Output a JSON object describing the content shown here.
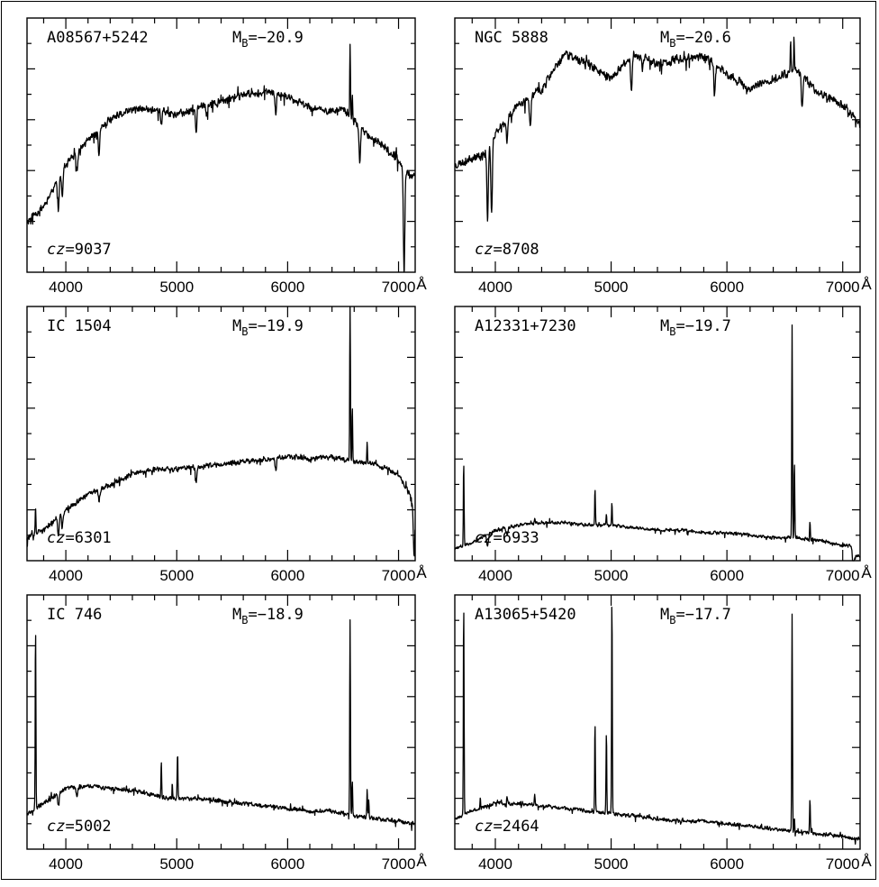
{
  "chart_data": {
    "type": "line",
    "x_unit": "Å",
    "xlim": [
      3650,
      7150
    ],
    "x_ticks": [
      4000,
      5000,
      6000,
      7000
    ],
    "x_minor_step": 200,
    "grid": false,
    "legend": "none",
    "line_color": "#000000",
    "panels": [
      {
        "galaxy": "A08567+5242",
        "mb_prefix": "M",
        "mb_sub": "B",
        "mb_value": "=−20.9",
        "cz_prefix": "cz",
        "cz_value": "=9037",
        "continuum": {
          "x": [
            3650,
            3800,
            4000,
            4200,
            4400,
            4600,
            4800,
            5000,
            5200,
            5400,
            5600,
            5800,
            6000,
            6200,
            6400,
            6500,
            6700,
            6900,
            7000,
            7050,
            7100
          ],
          "y": [
            0.2,
            0.26,
            0.42,
            0.52,
            0.6,
            0.64,
            0.64,
            0.62,
            0.65,
            0.67,
            0.7,
            0.71,
            0.69,
            0.65,
            0.63,
            0.64,
            0.55,
            0.48,
            0.44,
            0.4,
            0.38
          ]
        },
        "features": [
          {
            "x": 3933,
            "y": -0.12
          },
          {
            "x": 3968,
            "y": -0.1
          },
          {
            "x": 4101,
            "y": -0.08
          },
          {
            "x": 4300,
            "y": -0.1
          },
          {
            "x": 4861,
            "y": -0.05
          },
          {
            "x": 5175,
            "y": -0.1
          },
          {
            "x": 5270,
            "y": -0.04
          },
          {
            "x": 5893,
            "y": -0.08
          },
          {
            "x": 6563,
            "y": 0.28
          },
          {
            "x": 6583,
            "y": 0.1
          },
          {
            "x": 6650,
            "y": -0.15
          },
          {
            "x": 7050,
            "y": -0.4
          }
        ],
        "noise": 0.018,
        "seed": 11
      },
      {
        "galaxy": "NGC 5888",
        "mb_prefix": "M",
        "mb_sub": "B",
        "mb_value": "=−20.6",
        "cz_prefix": "cz",
        "cz_value": "=8708",
        "continuum": {
          "x": [
            3650,
            3800,
            3900,
            4000,
            4200,
            4400,
            4600,
            4800,
            5000,
            5200,
            5400,
            5600,
            5800,
            6000,
            6200,
            6400,
            6600,
            6800,
            7000,
            7150
          ],
          "y": [
            0.42,
            0.45,
            0.46,
            0.55,
            0.66,
            0.72,
            0.86,
            0.82,
            0.76,
            0.86,
            0.82,
            0.84,
            0.85,
            0.78,
            0.72,
            0.76,
            0.8,
            0.7,
            0.66,
            0.58
          ]
        },
        "features": [
          {
            "x": 3933,
            "y": -0.3
          },
          {
            "x": 3968,
            "y": -0.28
          },
          {
            "x": 4101,
            "y": -0.1
          },
          {
            "x": 4300,
            "y": -0.12
          },
          {
            "x": 5175,
            "y": -0.14
          },
          {
            "x": 5270,
            "y": -0.05
          },
          {
            "x": 5893,
            "y": -0.12
          },
          {
            "x": 6550,
            "y": 0.12
          },
          {
            "x": 6580,
            "y": 0.1
          },
          {
            "x": 6650,
            "y": -0.14
          }
        ],
        "noise": 0.02,
        "seed": 23
      },
      {
        "galaxy": "IC 1504",
        "mb_prefix": "M",
        "mb_sub": "B",
        "mb_value": "=−19.9",
        "cz_prefix": "cz",
        "cz_value": "=6301",
        "continuum": {
          "x": [
            3650,
            3800,
            4000,
            4200,
            4400,
            4600,
            4800,
            5000,
            5200,
            5400,
            5600,
            5800,
            6000,
            6200,
            6400,
            6600,
            6800,
            7000,
            7100,
            7150
          ],
          "y": [
            0.09,
            0.12,
            0.2,
            0.26,
            0.3,
            0.34,
            0.36,
            0.36,
            0.37,
            0.38,
            0.39,
            0.4,
            0.41,
            0.4,
            0.41,
            0.39,
            0.38,
            0.34,
            0.26,
            0.2
          ]
        },
        "features": [
          {
            "x": 3727,
            "y": 0.1
          },
          {
            "x": 3933,
            "y": -0.08
          },
          {
            "x": 3968,
            "y": -0.06
          },
          {
            "x": 4300,
            "y": -0.05
          },
          {
            "x": 5175,
            "y": -0.06
          },
          {
            "x": 5893,
            "y": -0.05
          },
          {
            "x": 6563,
            "y": 0.62
          },
          {
            "x": 6583,
            "y": 0.22
          },
          {
            "x": 6717,
            "y": 0.08
          },
          {
            "x": 7140,
            "y": -0.2
          }
        ],
        "noise": 0.012,
        "seed": 37
      },
      {
        "galaxy": "A12331+7230",
        "mb_prefix": "M",
        "mb_sub": "B",
        "mb_value": "=−19.7",
        "cz_prefix": "cz",
        "cz_value": "=6933",
        "continuum": {
          "x": [
            3650,
            3800,
            4000,
            4200,
            4400,
            4600,
            4800,
            5000,
            5200,
            5400,
            5600,
            5800,
            6000,
            6200,
            6400,
            6600,
            6800,
            7000,
            7080,
            7100
          ],
          "y": [
            0.05,
            0.07,
            0.12,
            0.14,
            0.15,
            0.15,
            0.14,
            0.14,
            0.13,
            0.12,
            0.12,
            0.11,
            0.11,
            0.1,
            0.09,
            0.09,
            0.08,
            0.06,
            0.06,
            0.02
          ]
        },
        "features": [
          {
            "x": 3727,
            "y": 0.33
          },
          {
            "x": 3933,
            "y": -0.05
          },
          {
            "x": 4101,
            "y": -0.03
          },
          {
            "x": 4340,
            "y": 0.02
          },
          {
            "x": 4861,
            "y": 0.14
          },
          {
            "x": 4959,
            "y": 0.04
          },
          {
            "x": 5007,
            "y": 0.09
          },
          {
            "x": 6563,
            "y": 0.84
          },
          {
            "x": 6583,
            "y": 0.3
          },
          {
            "x": 6717,
            "y": 0.07
          },
          {
            "x": 7090,
            "y": -0.08
          }
        ],
        "noise": 0.008,
        "seed": 53
      },
      {
        "galaxy": "IC 746",
        "mb_prefix": "M",
        "mb_sub": "B",
        "mb_value": "=−18.9",
        "cz_prefix": "cz",
        "cz_value": "=5002",
        "continuum": {
          "x": [
            3650,
            3800,
            4000,
            4200,
            4400,
            4600,
            4800,
            5000,
            5200,
            5400,
            5600,
            5800,
            6000,
            6200,
            6400,
            6600,
            6800,
            7000,
            7150
          ],
          "y": [
            0.14,
            0.18,
            0.24,
            0.25,
            0.24,
            0.23,
            0.21,
            0.2,
            0.2,
            0.19,
            0.18,
            0.17,
            0.16,
            0.15,
            0.15,
            0.13,
            0.12,
            0.11,
            0.1
          ]
        },
        "features": [
          {
            "x": 3727,
            "y": 0.72
          },
          {
            "x": 3933,
            "y": -0.05
          },
          {
            "x": 4101,
            "y": -0.04
          },
          {
            "x": 4861,
            "y": 0.13
          },
          {
            "x": 4959,
            "y": 0.06
          },
          {
            "x": 5007,
            "y": 0.19
          },
          {
            "x": 6563,
            "y": 0.77
          },
          {
            "x": 6583,
            "y": 0.14
          },
          {
            "x": 6717,
            "y": 0.12
          },
          {
            "x": 6731,
            "y": 0.07
          }
        ],
        "noise": 0.01,
        "seed": 67
      },
      {
        "galaxy": "A13065+5420",
        "mb_prefix": "M",
        "mb_sub": "B",
        "mb_value": "=−17.7",
        "cz_prefix": "cz",
        "cz_value": "=2464",
        "continuum": {
          "x": [
            3650,
            3800,
            4000,
            4200,
            4400,
            4600,
            4800,
            5000,
            5200,
            5400,
            5600,
            5800,
            6000,
            6200,
            6400,
            6600,
            6800,
            7000,
            7150
          ],
          "y": [
            0.12,
            0.15,
            0.18,
            0.18,
            0.17,
            0.16,
            0.15,
            0.14,
            0.13,
            0.12,
            0.11,
            0.11,
            0.1,
            0.09,
            0.08,
            0.07,
            0.06,
            0.05,
            0.04
          ]
        },
        "features": [
          {
            "x": 3727,
            "y": 0.84
          },
          {
            "x": 3870,
            "y": 0.04
          },
          {
            "x": 4101,
            "y": 0.03
          },
          {
            "x": 4340,
            "y": 0.04
          },
          {
            "x": 4861,
            "y": 0.35
          },
          {
            "x": 4959,
            "y": 0.32
          },
          {
            "x": 5007,
            "y": 0.85
          },
          {
            "x": 6563,
            "y": 0.86
          },
          {
            "x": 6583,
            "y": 0.05
          },
          {
            "x": 6717,
            "y": 0.14
          }
        ],
        "noise": 0.009,
        "seed": 79
      }
    ]
  }
}
